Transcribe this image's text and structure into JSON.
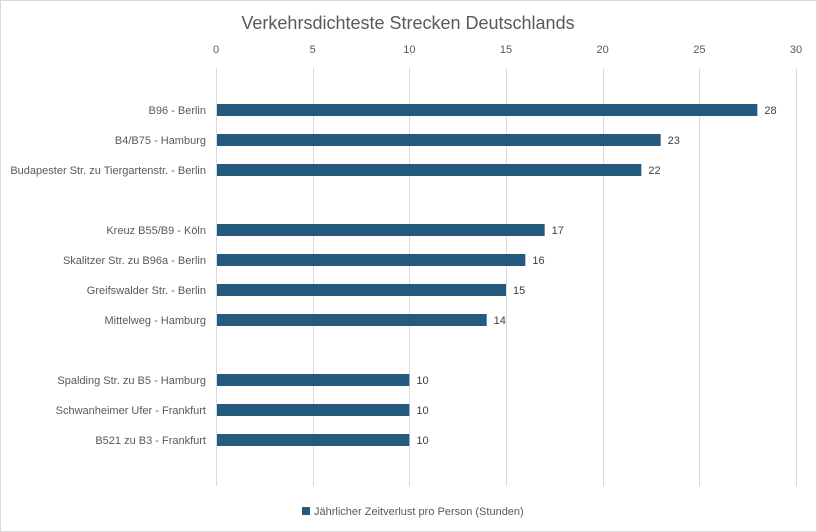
{
  "chart_data": {
    "type": "bar",
    "orientation": "horizontal",
    "title": "Verkehrsdichteste Strecken Deutschlands",
    "xlabel": "",
    "ylabel": "",
    "xlim": [
      0,
      30
    ],
    "x_ticks": [
      "0",
      "5",
      "10",
      "15",
      "20",
      "25",
      "30"
    ],
    "x_tick_values": [
      0,
      5,
      10,
      15,
      20,
      25,
      30
    ],
    "x_axis_position": "top",
    "grid": true,
    "categories": [
      "B96 - Berlin",
      "B4/B75 - Hamburg",
      "Budapester Str. zu Tiergartenstr. - Berlin",
      "",
      "Kreuz B55/B9 - Köln",
      "Skalitzer Str. zu B96a - Berlin",
      "Greifswalder Str. - Berlin",
      "Mittelweg - Hamburg",
      "",
      "Spalding Str. zu B5 - Hamburg",
      "Schwanheimer Ufer - Frankfurt",
      "B521 zu B3 - Frankfurt"
    ],
    "series": [
      {
        "name": "Jährlicher Zeitverlust pro Person (Stunden)",
        "color": "#255a7e",
        "values": [
          28,
          23,
          22,
          null,
          17,
          16,
          15,
          14,
          null,
          10,
          10,
          10
        ],
        "labels": [
          "28",
          "23",
          "22",
          "",
          "17",
          "16",
          "15",
          "14",
          "",
          "10",
          "10",
          "10"
        ]
      }
    ],
    "legend": {
      "position": "bottom",
      "entries": [
        "Jährlicher Zeitverlust pro Person (Stunden)"
      ]
    }
  }
}
